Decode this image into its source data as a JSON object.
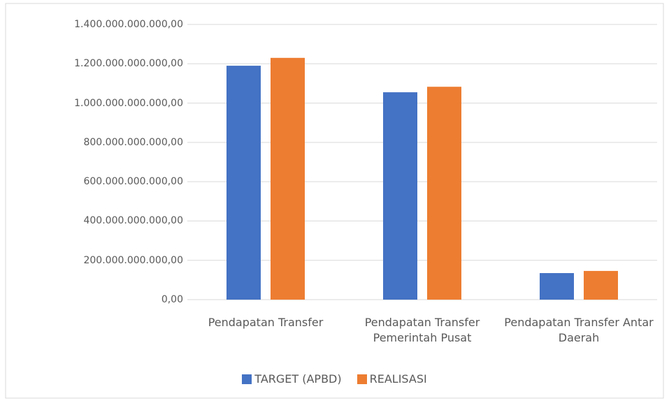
{
  "chart_data": {
    "type": "bar",
    "categories": [
      "Pendapatan Transfer",
      "Pendapatan Transfer Pemerintah Pusat",
      "Pendapatan Transfer Antar Daerah"
    ],
    "series": [
      {
        "name": "TARGET (APBD)",
        "color": "#4472c4",
        "values": [
          1190000000000,
          1055000000000,
          135000000000
        ]
      },
      {
        "name": "REALISASI",
        "color": "#ed7d31",
        "values": [
          1230000000000,
          1083000000000,
          146000000000
        ]
      }
    ],
    "ylim": [
      0,
      1400000000000
    ],
    "yticks": [
      {
        "value": 0,
        "label": "0,00"
      },
      {
        "value": 200000000000,
        "label": "200.000.000.000,00"
      },
      {
        "value": 400000000000,
        "label": "400.000.000.000,00"
      },
      {
        "value": 600000000000,
        "label": "600.000.000.000,00"
      },
      {
        "value": 800000000000,
        "label": "800.000.000.000,00"
      },
      {
        "value": 1000000000000,
        "label": "1.000.000.000.000,00"
      },
      {
        "value": 1200000000000,
        "label": "1.200.000.000.000,00"
      },
      {
        "value": 1400000000000,
        "label": "1.400.000.000.000,00"
      }
    ],
    "grid": true,
    "legend": "bottom"
  }
}
